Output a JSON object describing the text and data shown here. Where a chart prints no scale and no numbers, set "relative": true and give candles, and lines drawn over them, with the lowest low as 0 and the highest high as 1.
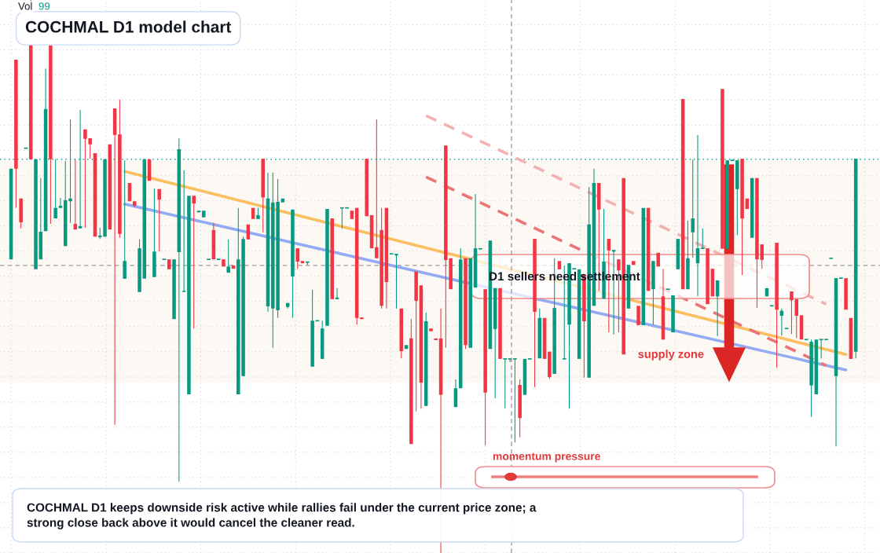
{
  "chart_data": {
    "type": "candlestick",
    "title": "COCHMAL D1 model chart",
    "relative": true,
    "grid": true,
    "colors": [
      "#089981",
      "#f23645",
      "#f23645",
      "#089981",
      "#f23645",
      "#089981",
      "#089981",
      "#089981",
      "#f23645",
      "#089981",
      "#089981",
      "#089981",
      "#089981",
      "#f23645",
      "#089981",
      "#f23645",
      "#f23645",
      "#f23645",
      "#089981",
      "#089981",
      "#f23645",
      "#f23645",
      "#f23645",
      "#089981",
      "#f23645",
      "#f23645",
      "#089981",
      "#089981",
      "#f23645",
      "#089981",
      "#f23645",
      "#089981",
      "#f23645",
      "#089981",
      "#089981",
      "#089981",
      "#089981",
      "#f23645",
      "#089981",
      "#089981",
      "#089981",
      "#f23645",
      "#089981",
      "#f23645",
      "#089981",
      "#f23645",
      "#089981",
      "#089981",
      "#f23645",
      "#f23645",
      "#089981",
      "#f23645",
      "#089981",
      "#089981",
      "#089981",
      "#089981",
      "#089981",
      "#089981",
      "#f23645",
      "#f23645",
      "#089981",
      "#089981",
      "#089981",
      "#089981",
      "#089981",
      "#f23645",
      "#089981",
      "#089981",
      "#089981",
      "#f23645",
      "#f23645",
      "#f23645",
      "#f23645",
      "#f23645",
      "#f23645",
      "#f23645",
      "#f23645",
      "#089981",
      "#089981",
      "#f23645",
      "#089981",
      "#f23645",
      "#f23645",
      "#f23645",
      "#089981",
      "#f23645",
      "#f23645",
      "#f23645",
      "#f23645",
      "#f23645",
      "#089981",
      "#089981",
      "#f23645",
      "#089981",
      "#089981",
      "#089981",
      "#f23645",
      "#089981",
      "#089981",
      "#f23645",
      "#089981",
      "#089981",
      "#089981",
      "#f23645",
      "#089981",
      "#089981",
      "#f23645",
      "#089981",
      "#f23645",
      "#f23645",
      "#089981",
      "#f23645",
      "#089981",
      "#089981",
      "#089981",
      "#089981",
      "#f23645",
      "#089981",
      "#089981",
      "#f23645",
      "#089981",
      "#f23645",
      "#089981",
      "#f23645",
      "#f23645",
      "#089981",
      "#f23645",
      "#f23645",
      "#089981",
      "#f23645",
      "#089981",
      "#f23645",
      "#f23645",
      "#089981",
      "#089981",
      "#089981",
      "#f23645",
      "#089981",
      "#089981",
      "#089981",
      "#089981",
      "#f23645",
      "#f23645",
      "#089981",
      "#f23645",
      "#089981",
      "#089981",
      "#089981",
      "#f23645",
      "#f23645",
      "#089981",
      "#f23645",
      "#f23645",
      "#089981",
      "#089981",
      "#f23645",
      "#089981",
      "#089981",
      "#f23645",
      "#f23645",
      "#f23645",
      "#089981",
      "#089981",
      "#089981",
      "#089981",
      "#089981",
      "#089981",
      "#089981",
      "#089981",
      "#f23645",
      "#f23645",
      "#089981"
    ],
    "categories": [
      null,
      null,
      null,
      null,
      null,
      null,
      null,
      null,
      null,
      null,
      null,
      null,
      null,
      null,
      null,
      null,
      null,
      null,
      null,
      null,
      null,
      null,
      null,
      null,
      null,
      null,
      null,
      null,
      null,
      null,
      null,
      null,
      null,
      null,
      null,
      null,
      null,
      null,
      null,
      null,
      null,
      null,
      null,
      null,
      null,
      null,
      null,
      null,
      null,
      null,
      null,
      null,
      null,
      null,
      null,
      null,
      null,
      null,
      null,
      null,
      null,
      null,
      null,
      null,
      null,
      null,
      null,
      null,
      null,
      null,
      null,
      null,
      null,
      null,
      null,
      null,
      null,
      null,
      null,
      null,
      null,
      null,
      null,
      null,
      null,
      null,
      null,
      null,
      null,
      null,
      null,
      null,
      null,
      null,
      null,
      null,
      null,
      null,
      null,
      null,
      null,
      null,
      null,
      null,
      null,
      null,
      null,
      null,
      null,
      null,
      null,
      null,
      null,
      null,
      null,
      null,
      null,
      null,
      null,
      null,
      null,
      null,
      null,
      null,
      null,
      null,
      null,
      null,
      null,
      null,
      null,
      null,
      null,
      null,
      null,
      null,
      null,
      null,
      null,
      null,
      null,
      null,
      null,
      null,
      null,
      null,
      null,
      null,
      null,
      null,
      null,
      null,
      null,
      null,
      null,
      null,
      null,
      null,
      null,
      null,
      null,
      null,
      null,
      null,
      null,
      null,
      null,
      null,
      null,
      null,
      null,
      null
    ],
    "ohlc": [
      [
        0.531,
        0.695,
        0.531,
        0.695
      ],
      [
        0.892,
        0.892,
        0.624,
        0.695
      ],
      [
        0.641,
        0.641,
        0.587,
        0.598
      ],
      [
        0.732,
        0.732,
        0.732,
        0.732
      ],
      [
        0.979,
        1,
        0.712,
        0.712
      ],
      [
        0.513,
        0.712,
        0.513,
        0.712
      ],
      [
        0.531,
        0.678,
        0.531,
        0.581
      ],
      [
        0.582,
        0.876,
        0.582,
        0.803
      ],
      [
        0.918,
        0.918,
        0.595,
        0.712
      ],
      [
        0.605,
        0.712,
        0.605,
        0.624
      ],
      [
        0.624,
        0.642,
        0.624,
        0.628
      ],
      [
        0.555,
        0.709,
        0.555,
        0.638
      ],
      [
        0.636,
        0.784,
        0.597,
        0.641
      ],
      [
        0.595,
        0.712,
        0.585,
        0.585
      ],
      [
        0.587,
        0.801,
        0.587,
        0.591
      ],
      [
        0.766,
        0.766,
        0.588,
        0.749
      ],
      [
        0.75,
        0.75,
        0.713,
        0.739
      ],
      [
        0.723,
        0.723,
        0.572,
        0.572
      ],
      [
        0.571,
        0.588,
        0.568,
        0.574
      ],
      [
        0.572,
        0.712,
        0.572,
        0.712
      ],
      [
        0.739,
        0.739,
        0.585,
        0.585
      ],
      [
        0.804,
        0.804,
        0.232,
        0.756
      ],
      [
        0.757,
        0.82,
        0.57,
        0.577
      ],
      [
        0.496,
        0.71,
        0.496,
        0.528
      ],
      [
        0.669,
        0.669,
        0.636,
        0.636
      ],
      [
        0.636,
        0.636,
        0.625,
        0.628
      ],
      [
        0.472,
        0.567,
        0.472,
        0.551
      ],
      [
        0.496,
        0.712,
        0.496,
        0.712
      ],
      [
        0.712,
        0.712,
        0.673,
        0.673
      ],
      [
        0.499,
        0.659,
        0.499,
        0.545
      ],
      [
        0.658,
        0.658,
        0.545,
        0.639
      ],
      [
        0.531,
        0.531,
        0.531,
        0.531
      ],
      [
        0.531,
        0.531,
        0.513,
        0.513
      ],
      [
        0.423,
        0.531,
        0.423,
        0.531
      ],
      [
        0.544,
        0.75,
        0.129,
        0.73
      ],
      [
        0.472,
        0.692,
        0.472,
        0.474
      ],
      [
        0.287,
        0.646,
        0.287,
        0.646
      ],
      [
        0.646,
        0.646,
        0.406,
        0.632
      ],
      [
        0.616,
        0.619,
        0.616,
        0.619
      ],
      [
        0.607,
        0.619,
        0.607,
        0.619
      ],
      [
        0.531,
        0.531,
        0.531,
        0.531
      ],
      [
        0.584,
        0.597,
        0.531,
        0.531
      ],
      [
        0.531,
        0.531,
        0.531,
        0.531
      ],
      [
        0.531,
        0.531,
        0.518,
        0.518
      ],
      [
        0.507,
        0.567,
        0.507,
        0.518
      ],
      [
        0.52,
        0.52,
        0.514,
        0.514
      ],
      [
        0.287,
        0.624,
        0.287,
        0.531
      ],
      [
        0.32,
        0.572,
        0.32,
        0.568
      ],
      [
        0.594,
        0.594,
        0.567,
        0.567
      ],
      [
        0.624,
        0.624,
        0.604,
        0.604
      ],
      [
        0.604,
        0.624,
        0.604,
        0.611
      ],
      [
        0.713,
        0.713,
        0.58,
        0.643
      ],
      [
        0.446,
        0.688,
        0.436,
        0.641
      ],
      [
        0.442,
        0.688,
        0.371,
        0.634
      ],
      [
        0.439,
        0.676,
        0.425,
        0.635
      ],
      [
        0.634,
        0.641,
        0.634,
        0.641
      ],
      [
        0.445,
        0.452,
        0.442,
        0.452
      ],
      [
        0.5,
        0.621,
        0.425,
        0.621
      ],
      [
        0.551,
        0.551,
        0.514,
        0.527
      ],
      [
        0.528,
        0.528,
        0.524,
        0.524
      ],
      [
        0.526,
        0.526,
        0.521,
        0.526
      ],
      [
        0.337,
        0.476,
        0.337,
        0.42
      ],
      [
        0.42,
        0.42,
        0.42,
        0.42
      ],
      [
        0.351,
        0.42,
        0.351,
        0.406
      ],
      [
        0.411,
        0.622,
        0.411,
        0.622
      ],
      [
        0.605,
        0.605,
        0.459,
        0.459
      ],
      [
        0.459,
        0.479,
        0.459,
        0.462
      ],
      [
        0.624,
        0.624,
        0.587,
        0.624
      ],
      [
        0.624,
        0.624,
        0.624,
        0.624
      ],
      [
        0.619,
        0.619,
        0.604,
        0.604
      ],
      [
        0.624,
        0.624,
        0.413,
        0.425
      ],
      [
        0.426,
        0.426,
        0.423,
        0.423
      ],
      [
        0.713,
        0.713,
        0.609,
        0.609
      ],
      [
        0.611,
        0.611,
        0.551,
        0.551
      ],
      [
        0.553,
        0.784,
        0.533,
        0.533
      ],
      [
        0.584,
        0.624,
        0.442,
        0.447
      ],
      [
        0.624,
        0.624,
        0.442,
        0.49
      ],
      [
        0.541,
        0.541,
        0.541,
        0.541
      ],
      [
        0.538,
        0.541,
        0.442,
        0.541
      ],
      [
        0.442,
        0.442,
        0.352,
        0.365
      ],
      [
        0.369,
        0.376,
        0.369,
        0.376
      ],
      [
        0.388,
        0.423,
        0.197,
        0.197
      ],
      [
        0.509,
        0.509,
        0.256,
        0.456
      ],
      [
        0.484,
        0.484,
        0.261,
        0.308
      ],
      [
        0.266,
        0.435,
        0.266,
        0.419
      ],
      [
        0.406,
        0.406,
        0.401,
        0.401
      ],
      [
        0.388,
        0.388,
        0.385,
        0.385
      ],
      [
        0.388,
        0.442,
        0,
        0.286
      ],
      [
        0.737,
        0.737,
        0.371,
        0.53
      ],
      [
        0.533,
        0.533,
        0.477,
        0.477
      ],
      [
        0.264,
        0.314,
        0.264,
        0.298
      ],
      [
        0.298,
        0.551,
        0.298,
        0.531
      ],
      [
        0.533,
        0.533,
        0.369,
        0.376
      ],
      [
        0.371,
        0.533,
        0.371,
        0.533
      ],
      [
        0.48,
        0.649,
        0.48,
        0.551
      ],
      [
        0.55,
        0.55,
        0.55,
        0.55
      ],
      [
        0.477,
        0.477,
        0.195,
        0.29
      ],
      [
        0.369,
        0.565,
        0.369,
        0.565
      ],
      [
        0.405,
        0.479,
        0.28,
        0.479
      ],
      [
        0.479,
        0.479,
        0.351,
        0.351
      ],
      [
        0.351,
        0.351,
        0.261,
        0.351
      ],
      [
        0.351,
        0.351,
        0.345,
        0.351
      ],
      [
        0.351,
        0.351,
        0.2,
        0.351
      ],
      [
        0.304,
        0.314,
        0.209,
        0.244
      ],
      [
        0.286,
        0.351,
        0.286,
        0.351
      ],
      [
        0.351,
        0.351,
        0.351,
        0.351
      ],
      [
        0.568,
        0.568,
        0.3,
        0.436
      ],
      [
        0.352,
        0.442,
        0.352,
        0.425
      ],
      [
        0.425,
        0.425,
        0.351,
        0.351
      ],
      [
        0.364,
        0.364,
        0.315,
        0.318
      ],
      [
        0.324,
        0.533,
        0.324,
        0.443
      ],
      [
        0.528,
        0.528,
        0.513,
        0.513
      ],
      [
        0.351,
        0.52,
        0.351,
        0.351
      ],
      [
        0.413,
        0.524,
        0.261,
        0.524
      ],
      [
        0.514,
        0.514,
        0.514,
        0.514
      ],
      [
        0.351,
        0.513,
        0.351,
        0.513
      ],
      [
        0.503,
        0.503,
        0.317,
        0.419
      ],
      [
        0.317,
        0.662,
        0.317,
        0.594
      ],
      [
        0.447,
        0.695,
        0.447,
        0.669
      ],
      [
        0.669,
        0.669,
        0.474,
        0.621
      ],
      [
        0.46,
        0.622,
        0.46,
        0.527
      ],
      [
        0.568,
        0.568,
        0.399,
        0.547
      ],
      [
        0.545,
        0.548,
        0.395,
        0.548
      ],
      [
        0.531,
        0.531,
        0.399,
        0.511
      ],
      [
        0.678,
        0.678,
        0.359,
        0.359
      ],
      [
        0.442,
        0.521,
        0.442,
        0.521
      ],
      [
        0.528,
        0.528,
        0.521,
        0.521
      ],
      [
        0.447,
        0.447,
        0.412,
        0.412
      ],
      [
        0.412,
        0.624,
        0.412,
        0.624
      ],
      [
        0.624,
        0.624,
        0.474,
        0.474
      ],
      [
        0.477,
        0.528,
        0.413,
        0.528
      ],
      [
        0.543,
        0.543,
        0.518,
        0.518
      ],
      [
        0.464,
        0.514,
        0.386,
        0.386
      ],
      [
        0.477,
        0.477,
        0.477,
        0.477
      ],
      [
        0.399,
        0.466,
        0.399,
        0.466
      ],
      [
        0.513,
        0.568,
        0.513,
        0.568
      ],
      [
        0.821,
        0.821,
        0.477,
        0.477
      ],
      [
        0.477,
        0.601,
        0.477,
        0.533
      ],
      [
        0.58,
        0.712,
        0.534,
        0.605
      ],
      [
        0.524,
        0.756,
        0.464,
        0.551
      ],
      [
        0.551,
        0.587,
        0.551,
        0.551
      ],
      [
        0.551,
        0.551,
        0.45,
        0.45
      ],
      [
        0.514,
        0.514,
        0.464,
        0.464
      ],
      [
        0.464,
        0.493,
        0.392,
        0.493
      ],
      [
        0.839,
        0.839,
        0.55,
        0.55
      ],
      [
        0.55,
        0.71,
        0.55,
        0.71
      ],
      [
        0.71,
        0.71,
        0.71,
        0.71
      ],
      [
        0.658,
        0.71,
        0.575,
        0.71
      ],
      [
        0.713,
        0.713,
        0.503,
        0.605
      ],
      [
        0.641,
        0.641,
        0.622,
        0.622
      ],
      [
        0.57,
        0.678,
        0.57,
        0.678
      ],
      [
        0.678,
        0.678,
        0.443,
        0.531
      ],
      [
        0.558,
        0.558,
        0.514,
        0.53
      ],
      [
        0.464,
        0.479,
        0.464,
        0.479
      ],
      [
        0.447,
        0.447,
        0.447,
        0.447
      ],
      [
        0.561,
        0.561,
        0.335,
        0.44
      ],
      [
        0.429,
        0.442,
        0.393,
        0.438
      ],
      [
        0.406,
        0.406,
        0.406,
        0.406
      ],
      [
        0.473,
        0.473,
        0.396,
        0.457
      ],
      [
        0.459,
        0.459,
        0.389,
        0.429
      ],
      [
        0.43,
        0.43,
        0.386,
        0.386
      ],
      [
        0.386,
        0.386,
        0.386,
        0.386
      ],
      [
        0.303,
        0.386,
        0.246,
        0.382
      ],
      [
        0.287,
        0.386,
        0.287,
        0.386
      ],
      [
        0.386,
        0.386,
        0.352,
        0.386
      ],
      [
        0.386,
        0.386,
        0.386,
        0.386
      ],
      [
        0.533,
        0.533,
        0.533,
        0.533
      ],
      [
        0.32,
        0.497,
        0.193,
        0.497
      ],
      [
        0.497,
        0.497,
        0.497,
        0.497
      ],
      [
        0.497,
        0.497,
        0.44,
        0.44
      ],
      [
        0.425,
        0.425,
        0.351,
        0.351
      ],
      [
        0.364,
        0.713,
        0.352,
        0.713
      ]
    ],
    "series": [
      {
        "type": "line",
        "color": "#fbbf62",
        "line_style": "solid",
        "values": [
          null,
          null,
          null,
          null,
          null,
          null,
          null,
          null,
          null,
          null,
          null,
          null,
          null,
          null,
          null,
          null,
          null,
          null,
          null,
          null,
          null,
          null,
          null,
          0.69,
          null,
          null,
          null,
          null,
          null,
          null,
          null,
          null,
          null,
          null,
          null,
          null,
          null,
          null,
          null,
          null,
          null,
          null,
          null,
          null,
          null,
          null,
          null,
          null,
          null,
          null,
          null,
          null,
          null,
          null,
          null,
          null,
          null,
          null,
          null,
          null,
          null,
          null,
          null,
          null,
          null,
          null,
          null,
          null,
          null,
          null,
          null,
          null,
          null,
          null,
          null,
          null,
          null,
          null,
          null,
          null,
          null,
          null,
          null,
          null,
          null,
          null,
          null,
          null,
          null,
          null,
          null,
          null,
          null,
          null,
          null,
          null,
          null,
          null,
          null,
          null,
          null,
          null,
          null,
          null,
          null,
          null,
          null,
          null,
          null,
          null,
          null,
          null,
          null,
          null,
          null,
          null,
          null,
          null,
          null,
          null,
          null,
          null,
          null,
          null,
          null,
          null,
          null,
          null,
          null,
          null,
          null,
          null,
          null,
          null,
          null,
          null,
          null,
          null,
          null,
          null,
          null,
          null,
          null,
          null,
          null,
          null,
          null,
          null,
          null,
          null,
          null,
          null,
          null,
          null,
          null,
          null,
          null,
          null,
          null,
          null,
          null,
          null,
          null,
          null,
          null,
          null,
          null,
          null,
          null,
          0.359,
          null,
          null
        ]
      },
      {
        "type": "line",
        "color": "#93abf3",
        "line_style": "solid",
        "values": [
          null,
          null,
          null,
          null,
          null,
          null,
          null,
          null,
          null,
          null,
          null,
          null,
          null,
          null,
          null,
          null,
          null,
          null,
          null,
          null,
          null,
          null,
          null,
          0.631,
          null,
          null,
          null,
          null,
          null,
          null,
          null,
          null,
          null,
          null,
          null,
          null,
          null,
          null,
          null,
          null,
          null,
          null,
          null,
          null,
          null,
          null,
          null,
          null,
          null,
          null,
          null,
          null,
          null,
          null,
          null,
          null,
          null,
          null,
          null,
          null,
          null,
          null,
          null,
          null,
          null,
          null,
          null,
          null,
          null,
          null,
          null,
          null,
          null,
          null,
          null,
          null,
          null,
          null,
          null,
          null,
          null,
          null,
          null,
          null,
          null,
          null,
          null,
          null,
          null,
          null,
          null,
          null,
          null,
          null,
          null,
          null,
          null,
          null,
          null,
          null,
          null,
          null,
          null,
          null,
          null,
          null,
          null,
          null,
          null,
          null,
          null,
          null,
          null,
          null,
          null,
          null,
          null,
          null,
          null,
          null,
          null,
          null,
          null,
          null,
          null,
          null,
          null,
          null,
          null,
          null,
          null,
          null,
          null,
          null,
          null,
          null,
          null,
          null,
          null,
          null,
          null,
          null,
          null,
          null,
          null,
          null,
          null,
          null,
          null,
          null,
          null,
          null,
          null,
          null,
          null,
          null,
          null,
          null,
          null,
          null,
          null,
          null,
          null,
          null,
          null,
          null,
          null,
          null,
          null,
          0.331,
          null,
          null
        ]
      },
      {
        "type": "line",
        "color": "#ec7474",
        "line_style": "dashed",
        "values": [
          null,
          null,
          null,
          null,
          null,
          null,
          null,
          null,
          null,
          null,
          null,
          null,
          null,
          null,
          null,
          null,
          null,
          null,
          null,
          null,
          null,
          null,
          null,
          null,
          null,
          null,
          null,
          null,
          null,
          null,
          null,
          null,
          null,
          null,
          null,
          null,
          null,
          null,
          null,
          null,
          null,
          null,
          null,
          null,
          null,
          null,
          null,
          null,
          null,
          null,
          null,
          null,
          null,
          null,
          null,
          null,
          null,
          null,
          null,
          null,
          null,
          null,
          null,
          null,
          null,
          null,
          null,
          null,
          null,
          null,
          null,
          null,
          null,
          null,
          null,
          null,
          null,
          null,
          null,
          null,
          null,
          null,
          null,
          null,
          0.68,
          null,
          null,
          null,
          null,
          null,
          null,
          null,
          null,
          null,
          null,
          null,
          null,
          null,
          null,
          null,
          null,
          null,
          null,
          null,
          null,
          null,
          null,
          null,
          null,
          null,
          null,
          null,
          null,
          null,
          null,
          null,
          null,
          null,
          null,
          null,
          null,
          null,
          null,
          null,
          null,
          null,
          null,
          null,
          null,
          null,
          null,
          null,
          null,
          null,
          null,
          null,
          null,
          null,
          null,
          null,
          null,
          null,
          null,
          null,
          null,
          null,
          null,
          null,
          null,
          null,
          null,
          null,
          null,
          null,
          null,
          null,
          null,
          null,
          null,
          null,
          null,
          null,
          null,
          null,
          null,
          0.339,
          null,
          null,
          null,
          null,
          null,
          null
        ]
      },
      {
        "type": "line",
        "color": "#f3b2b2",
        "line_style": "dashed",
        "values": [
          null,
          null,
          null,
          null,
          null,
          null,
          null,
          null,
          null,
          null,
          null,
          null,
          null,
          null,
          null,
          null,
          null,
          null,
          null,
          null,
          null,
          null,
          null,
          null,
          null,
          null,
          null,
          null,
          null,
          null,
          null,
          null,
          null,
          null,
          null,
          null,
          null,
          null,
          null,
          null,
          null,
          null,
          null,
          null,
          null,
          null,
          null,
          null,
          null,
          null,
          null,
          null,
          null,
          null,
          null,
          null,
          null,
          null,
          null,
          null,
          null,
          null,
          null,
          null,
          null,
          null,
          null,
          null,
          null,
          null,
          null,
          null,
          null,
          null,
          null,
          null,
          null,
          null,
          null,
          null,
          null,
          null,
          null,
          null,
          0.791,
          null,
          null,
          null,
          null,
          null,
          null,
          null,
          null,
          null,
          null,
          null,
          null,
          null,
          null,
          null,
          null,
          null,
          null,
          null,
          null,
          null,
          null,
          null,
          null,
          null,
          null,
          null,
          null,
          null,
          null,
          null,
          null,
          null,
          null,
          null,
          null,
          null,
          null,
          null,
          null,
          null,
          null,
          null,
          null,
          null,
          null,
          null,
          null,
          null,
          null,
          null,
          null,
          null,
          null,
          null,
          null,
          null,
          null,
          null,
          null,
          null,
          null,
          null,
          null,
          null,
          null,
          null,
          null,
          null,
          null,
          null,
          null,
          null,
          null,
          null,
          null,
          null,
          null,
          null,
          null,
          0.45,
          null,
          null,
          null,
          null,
          null,
          null
        ]
      }
    ],
    "ref_lines": [
      {
        "axis": "y",
        "value": 0.712,
        "color": "#089981",
        "line_style": "dotted"
      },
      {
        "axis": "y",
        "value": 0.52,
        "color": "#9e9e9e",
        "line_style": "dashed"
      }
    ],
    "bands": [
      {
        "axis": "y",
        "from": 0.308,
        "to": 0.709,
        "label": "supply zone",
        "color": "#fcf8f4"
      }
    ],
    "annotations": [
      "Vol",
      "99",
      "D1 sellers need settlement",
      "momentum pressure",
      "COCHMAL D1 keeps downside risk active while rallies fail under the current price zone; a\nstrong close back above it would cancel the cleaner read."
    ]
  }
}
